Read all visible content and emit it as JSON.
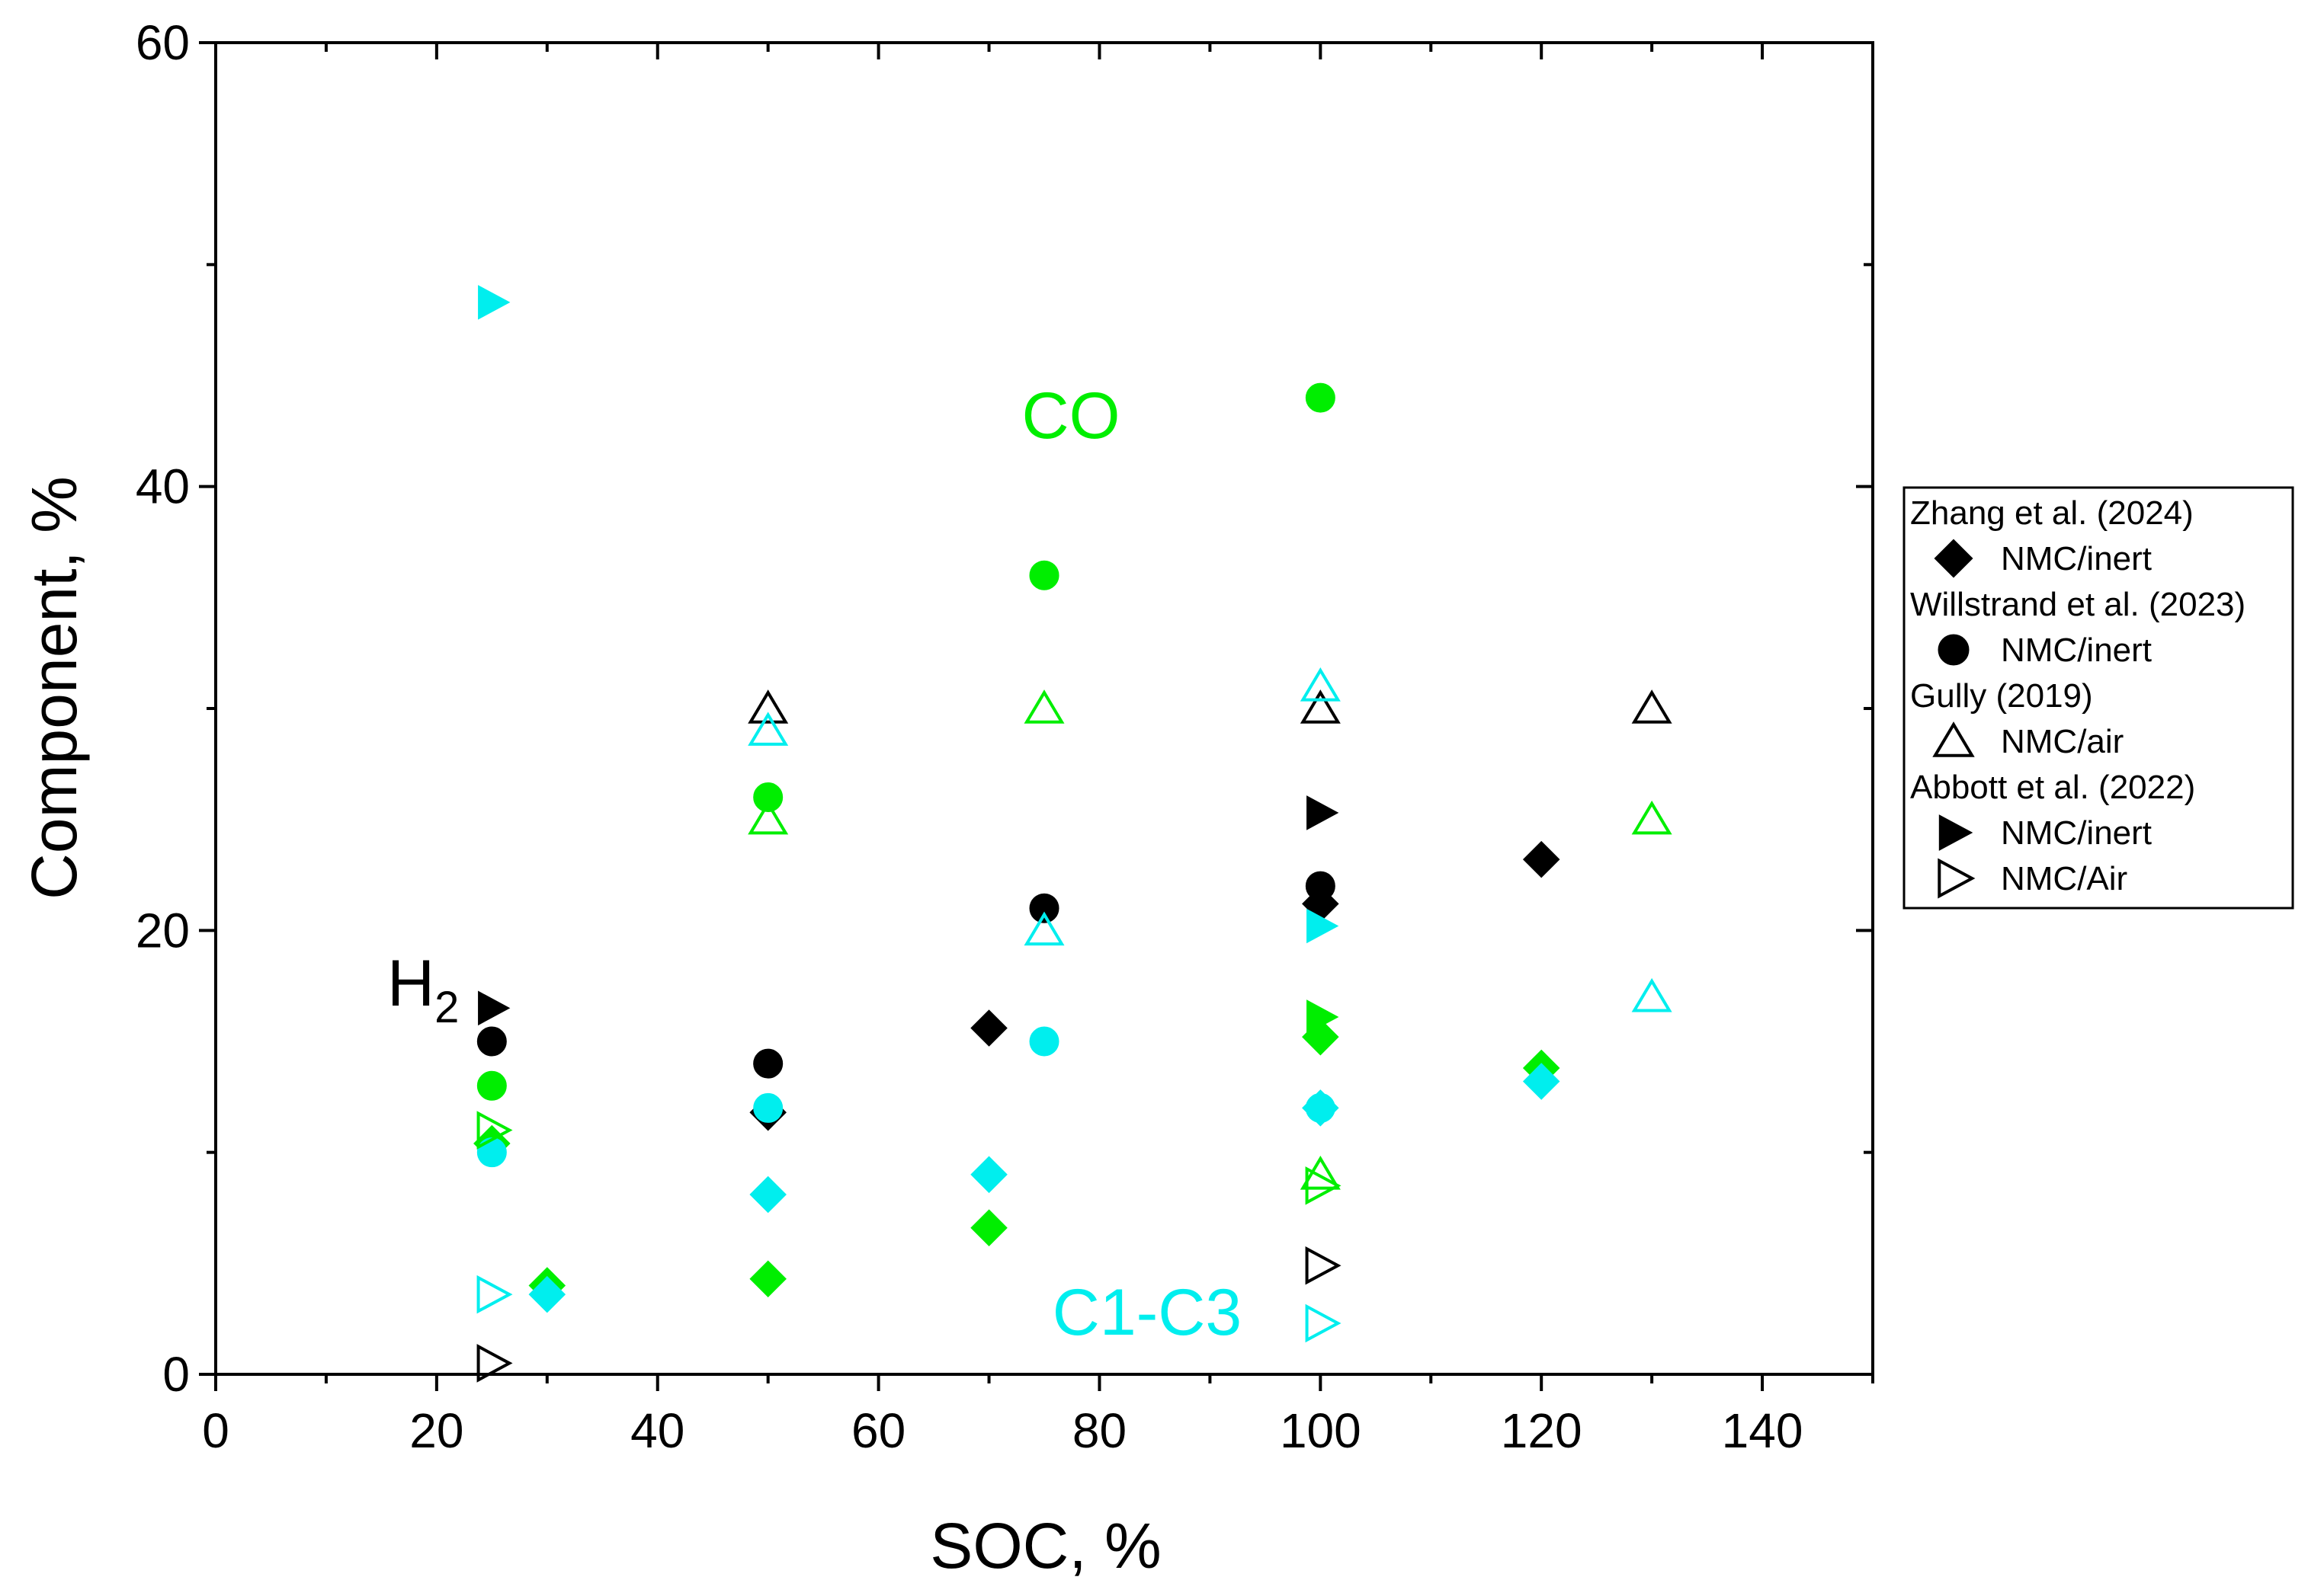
{
  "chart_data": {
    "type": "scatter",
    "title": "",
    "xlabel": "SOC, %",
    "ylabel": "Component, %",
    "xlim": [
      0,
      150
    ],
    "ylim": [
      0,
      60
    ],
    "xticks": [
      0,
      20,
      40,
      60,
      80,
      100,
      120,
      140
    ],
    "yticks": [
      0,
      20,
      40,
      60
    ],
    "grid": false,
    "colors": {
      "H2": "#000000",
      "CO": "#00ee00",
      "C1-C3": "#00eeee"
    },
    "annotations": [
      {
        "text": "CO",
        "color": "#00ee00"
      },
      {
        "text": "H",
        "subscript": "2",
        "color": "#000000"
      },
      {
        "text": "C1-C3",
        "color": "#00eeee"
      }
    ],
    "legend": {
      "position": "right",
      "groups": [
        {
          "author": "Zhang et al. (2024)",
          "entries": [
            {
              "label": "NMC/inert",
              "marker": "diamond",
              "filled": true
            }
          ]
        },
        {
          "author": "Willstrand et al. (2023)",
          "entries": [
            {
              "label": "NMC/inert",
              "marker": "circle",
              "filled": true
            }
          ]
        },
        {
          "author": "Gully (2019)",
          "entries": [
            {
              "label": "NMC/air",
              "marker": "triangle-up",
              "filled": false
            }
          ]
        },
        {
          "author": "Abbott et al. (2022)",
          "entries": [
            {
              "label": "NMC/inert",
              "marker": "triangle-right",
              "filled": true
            },
            {
              "label": "NMC/Air",
              "marker": "triangle-right",
              "filled": false
            }
          ]
        }
      ]
    },
    "series": [
      {
        "name": "Zhang et al. (2024) NMC/inert",
        "component": "H2",
        "marker": "diamond",
        "filled": true,
        "points": [
          [
            50,
            11.8
          ],
          [
            70,
            15.6
          ],
          [
            100,
            21.2
          ],
          [
            120,
            23.2
          ]
        ]
      },
      {
        "name": "Zhang et al. (2024) NMC/inert",
        "component": "CO",
        "marker": "diamond",
        "filled": true,
        "points": [
          [
            25,
            10.4
          ],
          [
            30,
            4.0
          ],
          [
            50,
            4.3
          ],
          [
            70,
            6.6
          ],
          [
            100,
            15.2
          ],
          [
            120,
            13.8
          ]
        ]
      },
      {
        "name": "Zhang et al. (2024) NMC/inert",
        "component": "C1-C3",
        "marker": "diamond",
        "filled": true,
        "points": [
          [
            30,
            3.6
          ],
          [
            50,
            8.1
          ],
          [
            70,
            9.0
          ],
          [
            100,
            12.0
          ],
          [
            120,
            13.2
          ]
        ]
      },
      {
        "name": "Willstrand et al. (2023) NMC/inert",
        "component": "H2",
        "marker": "circle",
        "filled": true,
        "points": [
          [
            25,
            15.0
          ],
          [
            50,
            14.0
          ],
          [
            75,
            21.0
          ],
          [
            100,
            22.0
          ]
        ]
      },
      {
        "name": "Willstrand et al. (2023) NMC/inert",
        "component": "CO",
        "marker": "circle",
        "filled": true,
        "points": [
          [
            25,
            13.0
          ],
          [
            50,
            26.0
          ],
          [
            75,
            36.0
          ],
          [
            100,
            44.0
          ]
        ]
      },
      {
        "name": "Willstrand et al. (2023) NMC/inert",
        "component": "C1-C3",
        "marker": "circle",
        "filled": true,
        "points": [
          [
            25,
            10.0
          ],
          [
            50,
            12.0
          ],
          [
            75,
            15.0
          ],
          [
            100,
            12.0
          ]
        ]
      },
      {
        "name": "Gully (2019) NMC/air",
        "component": "H2",
        "marker": "triangle-up",
        "filled": false,
        "points": [
          [
            50,
            30.0
          ],
          [
            100,
            30.0
          ],
          [
            130,
            30.0
          ]
        ]
      },
      {
        "name": "Gully (2019) NMC/air",
        "component": "CO",
        "marker": "triangle-up",
        "filled": false,
        "points": [
          [
            50,
            25.0
          ],
          [
            75,
            30.0
          ],
          [
            100,
            9.0
          ],
          [
            130,
            25.0
          ]
        ]
      },
      {
        "name": "Gully (2019) NMC/air",
        "component": "C1-C3",
        "marker": "triangle-up",
        "filled": false,
        "points": [
          [
            50,
            29.0
          ],
          [
            75,
            20.0
          ],
          [
            100,
            31.0
          ],
          [
            130,
            17.0
          ]
        ]
      },
      {
        "name": "Abbott et al. (2022) NMC/inert",
        "component": "H2",
        "marker": "triangle-right",
        "filled": true,
        "points": [
          [
            25,
            16.5
          ],
          [
            100,
            25.3
          ]
        ]
      },
      {
        "name": "Abbott et al. (2022) NMC/inert",
        "component": "CO",
        "marker": "triangle-right",
        "filled": true,
        "points": [
          [
            100,
            16.1
          ]
        ]
      },
      {
        "name": "Abbott et al. (2022) NMC/inert",
        "component": "C1-C3",
        "marker": "triangle-right",
        "filled": true,
        "points": [
          [
            25,
            48.3
          ],
          [
            100,
            20.2
          ]
        ]
      },
      {
        "name": "Abbott et al. (2022) NMC/Air",
        "component": "H2",
        "marker": "triangle-right",
        "filled": false,
        "points": [
          [
            25,
            0.5
          ],
          [
            100,
            4.9
          ]
        ]
      },
      {
        "name": "Abbott et al. (2022) NMC/Air",
        "component": "CO",
        "marker": "triangle-right",
        "filled": false,
        "points": [
          [
            25,
            11.0
          ],
          [
            100,
            8.5
          ]
        ]
      },
      {
        "name": "Abbott et al. (2022) NMC/Air",
        "component": "C1-C3",
        "marker": "triangle-right",
        "filled": false,
        "points": [
          [
            25,
            3.6
          ],
          [
            100,
            2.3
          ]
        ]
      }
    ]
  }
}
